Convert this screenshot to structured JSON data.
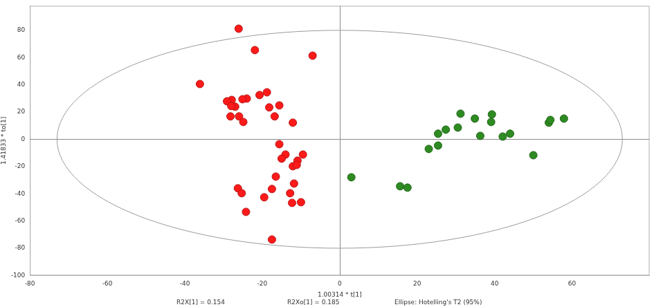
{
  "chart_data": {
    "type": "scatter",
    "x_label": "1.00314 * t[1]",
    "y_label": "1.41833 * to[1]",
    "annotations": [
      "R2X[1] = 0.154",
      "R2Xo[1] = 0.185",
      "Ellipse: Hotelling's T2 (95%)"
    ],
    "xlim": [
      -80,
      80
    ],
    "ylim": [
      -100,
      98
    ],
    "xticks": [
      -80,
      -60,
      -40,
      -20,
      0,
      20,
      40,
      60
    ],
    "yticks": [
      -100,
      -80,
      -60,
      -40,
      -20,
      0,
      20,
      40,
      60,
      80
    ],
    "grid": false,
    "ellipse": {
      "center": [
        0,
        0
      ],
      "radii": [
        73,
        80
      ]
    },
    "series": [
      {
        "color": "#ff1a1a",
        "marker": "circle",
        "x": [
          -26.1,
          -21.9,
          -7,
          -36.1,
          -20.7,
          -18.8,
          -24,
          -25.1,
          -27.9,
          -29.1,
          -15.6,
          -18.2,
          -27,
          -28,
          -26,
          -24.9,
          -28.2,
          -16.8,
          -12.1,
          -15.6,
          -14,
          -9.5,
          -15,
          -10.9,
          -12.1,
          -11.1,
          -16.5,
          -11.8,
          -26.3,
          -25.3,
          -17.5,
          -12.8,
          -19.5,
          -12.3,
          -10,
          -24.2,
          -17.5
        ],
        "values": [
          81.2,
          65.5,
          61.4,
          40.6,
          32.5,
          34.5,
          29.9,
          29.4,
          28.9,
          27.9,
          24.9,
          23.4,
          23.9,
          24.4,
          16.8,
          12.7,
          16.8,
          16.8,
          12.2,
          -3.6,
          -11.2,
          -11.2,
          -14.2,
          -15.7,
          -19.8,
          -18.8,
          -27.4,
          -32.5,
          -36,
          -39.6,
          -36.5,
          -39.6,
          -42.6,
          -46.7,
          -46.2,
          -53.3,
          -73.6
        ]
      },
      {
        "color": "#2e8b22",
        "marker": "circle",
        "x": [
          3,
          15.6,
          17.5,
          23,
          25.4,
          25.4,
          27.4,
          30.5,
          31.2,
          34.9,
          39.3,
          39.1,
          36.3,
          42.1,
          44,
          50,
          54,
          54.4,
          57.9
        ],
        "values": [
          -27.9,
          -34.5,
          -35.5,
          -7.1,
          4.1,
          -4.6,
          7.1,
          8.6,
          18.8,
          15.2,
          18.3,
          12.7,
          2.5,
          2,
          4.1,
          -11.7,
          12.2,
          14.2,
          15.2
        ]
      }
    ]
  }
}
